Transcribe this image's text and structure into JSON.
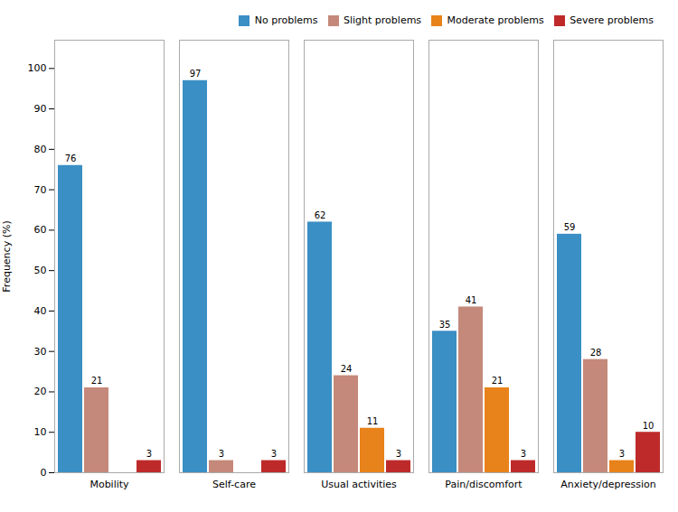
{
  "chart_data": {
    "type": "bar",
    "categories": [
      "Mobility",
      "Self-care",
      "Usual activities",
      "Pain/discomfort",
      "Anxiety/depression"
    ],
    "series": [
      {
        "name": "No problems",
        "color": "#3A8FC4",
        "values": [
          76,
          97,
          62,
          35,
          59
        ]
      },
      {
        "name": "Slight problems",
        "color": "#C4897A",
        "values": [
          21,
          3,
          24,
          41,
          28
        ]
      },
      {
        "name": "Moderate problems",
        "color": "#E8821A",
        "values": [
          0,
          0,
          11,
          21,
          3
        ],
        "value_labels": [
          null,
          null,
          "11",
          "21",
          "3"
        ]
      },
      {
        "name": "Severe problems",
        "color": "#BE2A2A",
        "values": [
          3,
          3,
          3,
          3,
          10
        ]
      }
    ],
    "ylabel": "Frequency (%)",
    "ylim": [
      0,
      107
    ],
    "yticks": [
      0,
      10,
      20,
      30,
      40,
      50,
      60,
      70,
      80,
      90,
      100
    ],
    "grid": false,
    "legend": "upper right",
    "data_labels": true
  }
}
